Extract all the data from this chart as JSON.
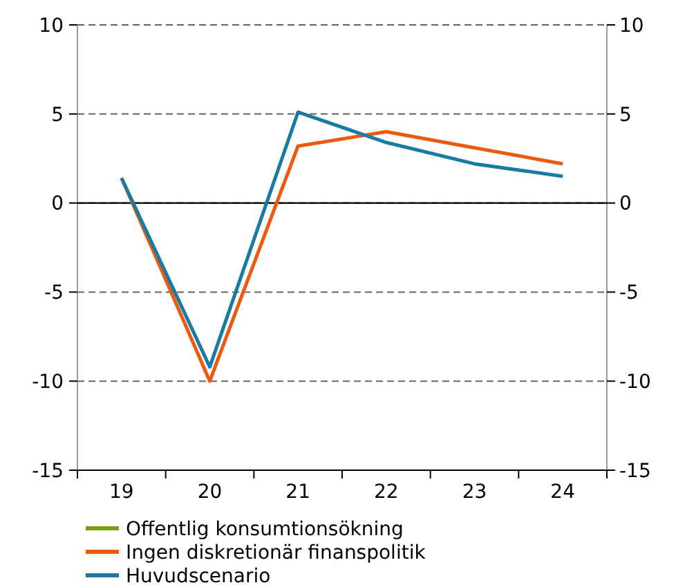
{
  "chart_data": {
    "type": "line",
    "categories": [
      "19",
      "20",
      "21",
      "22",
      "23",
      "24"
    ],
    "series": [
      {
        "name": "Offentlig konsumtionsökning",
        "color": "#7aa116",
        "values": [
          null,
          null,
          null,
          null,
          null,
          null
        ]
      },
      {
        "name": "Ingen diskretionär finanspolitik",
        "color": "#ec5a0e",
        "values": [
          1.4,
          -10.0,
          3.2,
          4.0,
          3.1,
          2.2
        ]
      },
      {
        "name": "Huvudscenario",
        "color": "#1a7aa2",
        "values": [
          1.4,
          -9.2,
          5.1,
          3.4,
          2.2,
          1.5
        ]
      }
    ],
    "ylim": [
      -15,
      10
    ],
    "yticks": [
      -15,
      -10,
      -5,
      0,
      5,
      10
    ],
    "y2lim": [
      -15,
      10
    ],
    "y2ticks": [
      -15,
      -10,
      -5,
      0,
      5,
      10
    ],
    "grid": "y",
    "legend": "bottom",
    "line_style": "solid",
    "marker": "none"
  }
}
